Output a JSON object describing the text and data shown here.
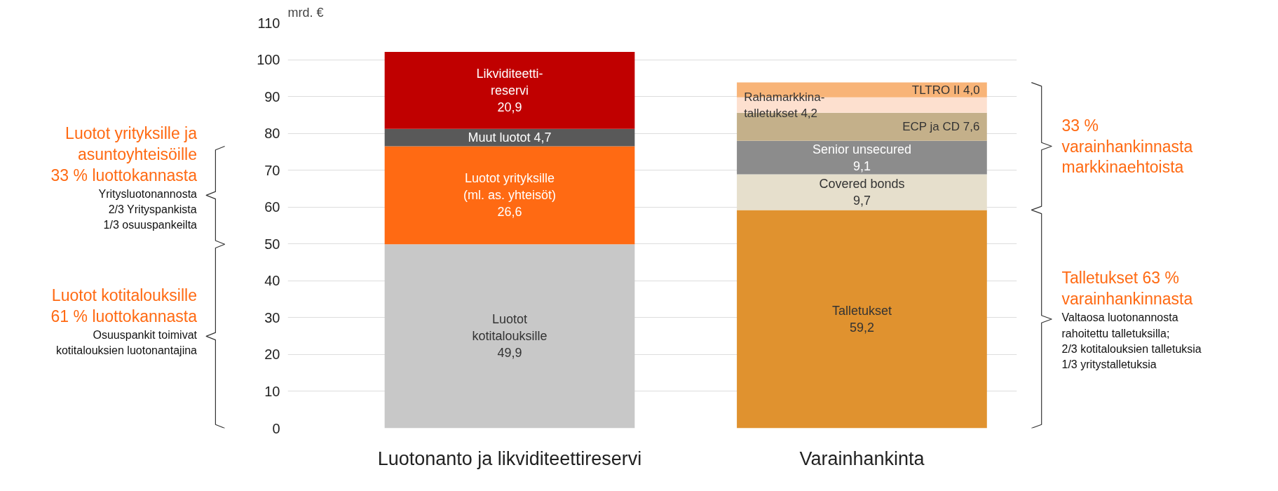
{
  "chart_data": {
    "type": "bar",
    "stacked": true,
    "ylabel": "mrd. €",
    "categories": [
      "Luotonanto ja likviditeettireservi",
      "Varainhankinta"
    ],
    "series": [
      {
        "name": "Luotot\nkotitalouksille",
        "color": "#c8c8c8",
        "values": [
          49.9,
          null
        ],
        "value_labels": [
          "49,9",
          null
        ]
      },
      {
        "name": "Luotot yrityksille\n(ml. as. yhteisöt)",
        "color": "#ff6a13",
        "values": [
          26.6,
          null
        ],
        "value_labels": [
          "26,6",
          null
        ]
      },
      {
        "name": "Muut luotot",
        "color": "#595959",
        "values": [
          4.7,
          null
        ],
        "value_labels": [
          "4,7",
          null
        ]
      },
      {
        "name": "Likviditeetti-\nreservi",
        "color": "#c00000",
        "values": [
          20.9,
          null
        ],
        "value_labels": [
          "20,9",
          null
        ]
      },
      {
        "name": "Talletukset",
        "color": "#e0922f",
        "values": [
          null,
          59.2
        ],
        "value_labels": [
          null,
          "59,2"
        ]
      },
      {
        "name": "Covered bonds",
        "color": "#e6dfcc",
        "values": [
          null,
          9.7
        ],
        "value_labels": [
          null,
          "9,7"
        ]
      },
      {
        "name": "Senior unsecured",
        "color": "#8c8c8c",
        "values": [
          null,
          9.1
        ],
        "value_labels": [
          null,
          "9,1"
        ]
      },
      {
        "name": "ECP ja CD",
        "color": "#c4b08a",
        "values": [
          null,
          7.6
        ],
        "value_labels": [
          null,
          "7,6"
        ]
      },
      {
        "name": "Rahamarkkina-\ntalletukset",
        "color": "#fde0cf",
        "values": [
          null,
          4.2
        ],
        "value_labels": [
          null,
          "4,2"
        ]
      },
      {
        "name": "TLTRO II",
        "color": "#f8b478",
        "values": [
          null,
          4.0
        ],
        "value_labels": [
          null,
          "4,0"
        ]
      }
    ],
    "ylim": [
      0,
      110
    ],
    "yticks": [
      0,
      10,
      20,
      30,
      40,
      50,
      60,
      70,
      80,
      90,
      100,
      110
    ],
    "grid": "y",
    "annotations": [
      "Luotot yrityksille ja\nasuntoyhteisöille\n33 % luottokannasta",
      "Luotot kotitalouksille\n61 % luottokannasta",
      "33 %\nvarainhankinnasta\nmarkkinaehtoista",
      "Talletukset 63 %\nvarainhankinnasta",
      "Yritysluotonannosta\n2/3 Yrityspankista\n1/3 osuuspankeilta",
      "Osuuspankit toimivat\nkotitalouksien luotonantajina",
      "Valtaosa luotonannosta\nrahoitettu talletuksilla;\n2/3 kotitalouksien talletuksia\n1/3 yritystalletuksia"
    ]
  }
}
